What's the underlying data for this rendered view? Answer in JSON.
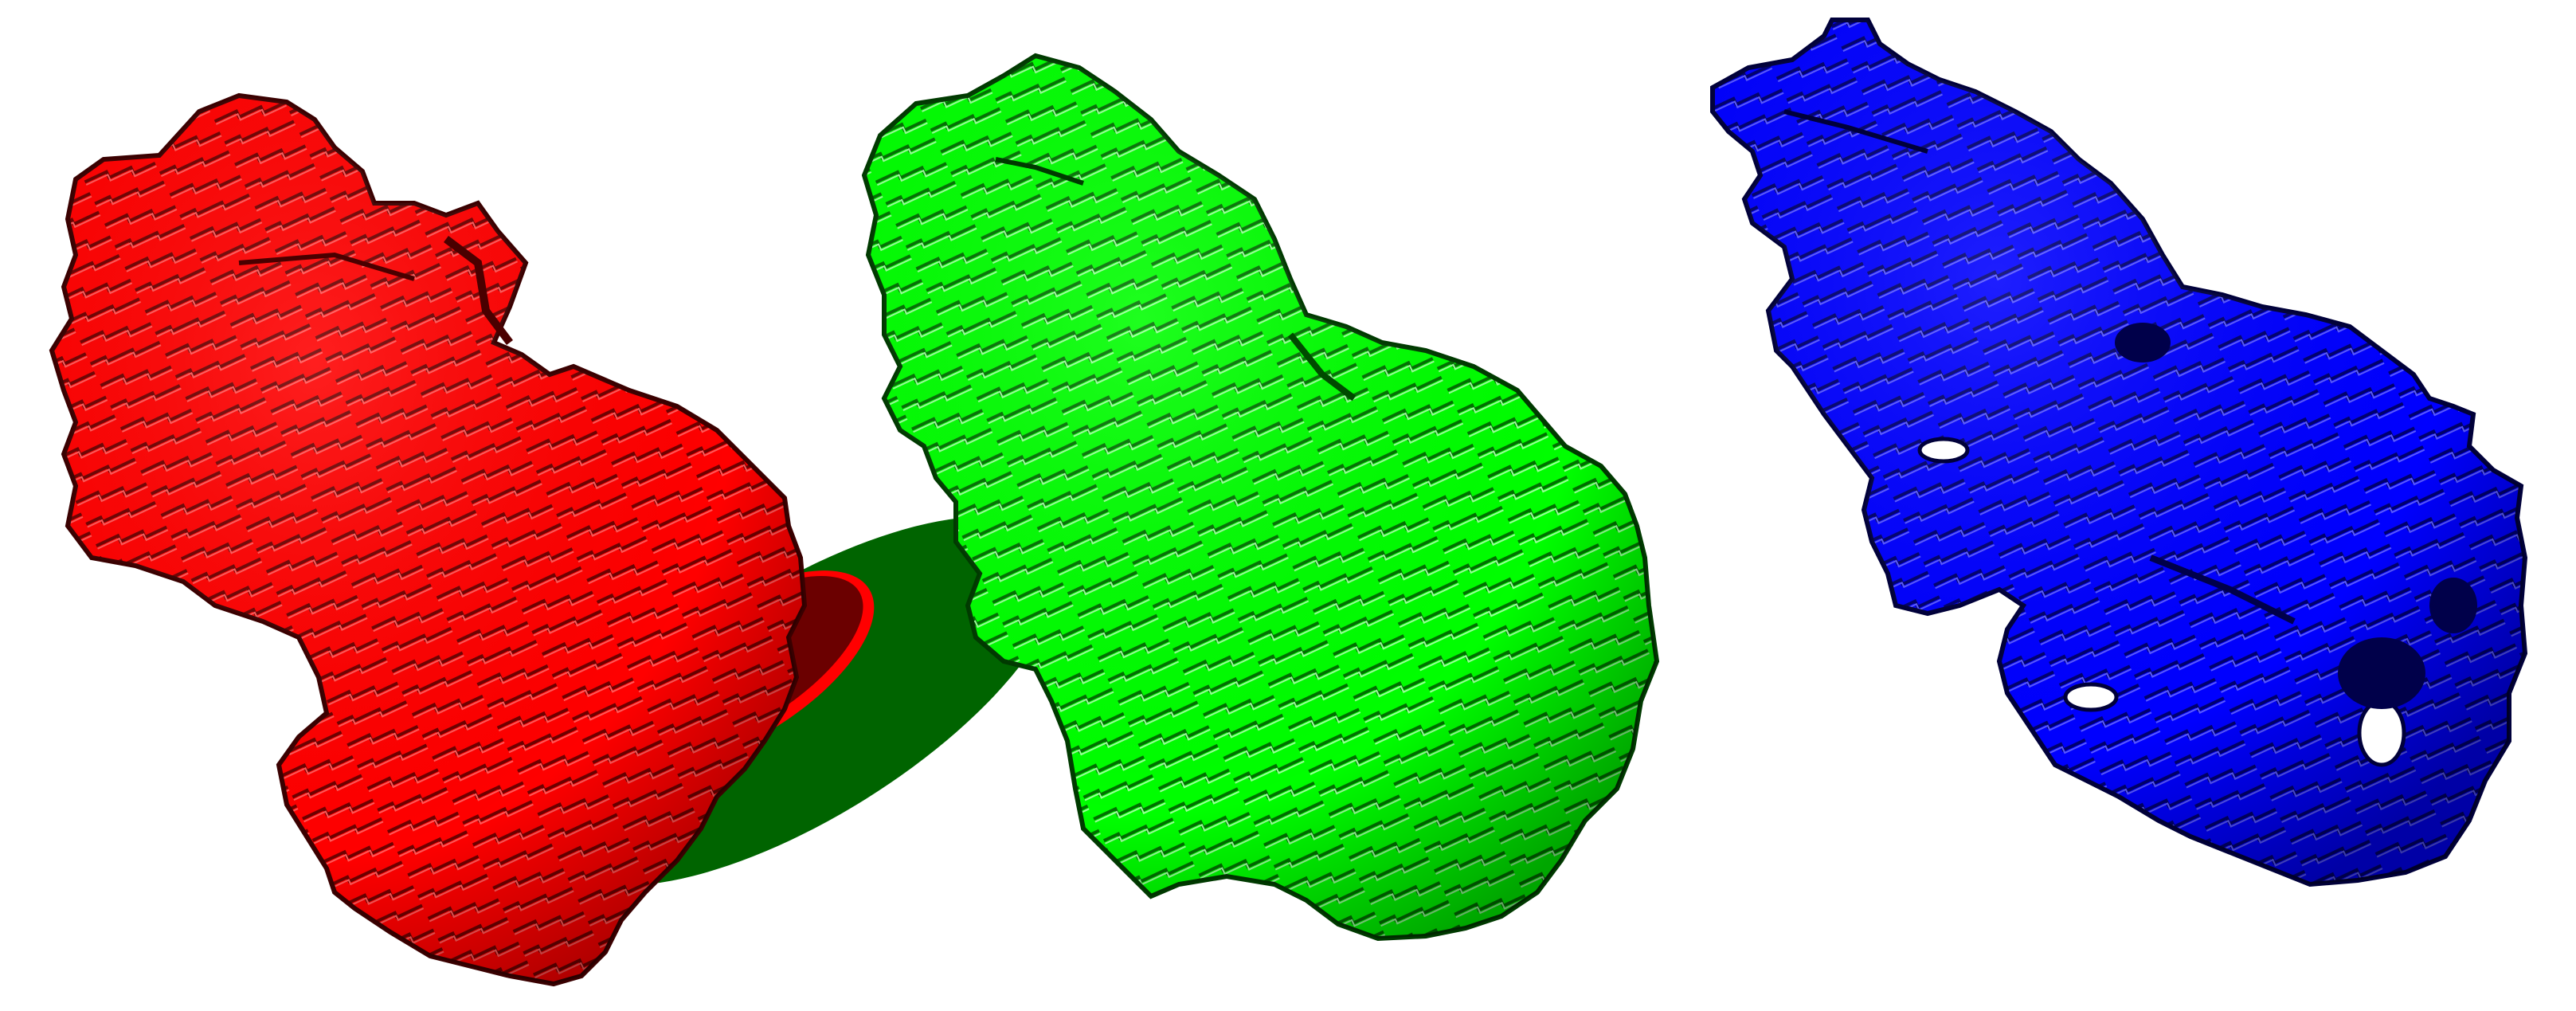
{
  "scene": {
    "background": "#ffffff",
    "objects": [
      {
        "name": "red-voxel-surface",
        "fill": "#ff0000",
        "dark": "#7a0000",
        "light": "#ff4a4a"
      },
      {
        "name": "green-voxel-surface",
        "fill": "#00ff00",
        "dark": "#007a00",
        "light": "#7dff7d"
      },
      {
        "name": "blue-voxel-surface",
        "fill": "#0000ff",
        "dark": "#00007a",
        "light": "#4a4aff"
      }
    ],
    "base_disc": {
      "outer": "#006400",
      "inner_ring": "#ff0000",
      "inner": "#6b0000"
    }
  }
}
